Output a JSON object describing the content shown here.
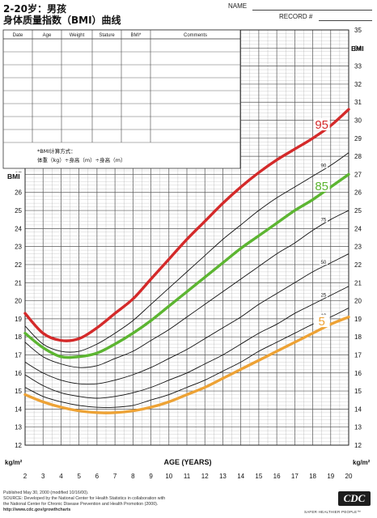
{
  "header": {
    "title": "2-20岁：男孩",
    "subtitle": "身体质量指数（BMI）曲线",
    "name_label": "NAME",
    "record_label": "RECORD #"
  },
  "record_table": {
    "columns": [
      "Date",
      "Age",
      "Weight",
      "Stature",
      "BMI*",
      "Comments"
    ]
  },
  "bmi_note": {
    "line1": "*BMI计算方式：",
    "line2": "体重（kg）÷身高（m）÷身高（m）"
  },
  "footer": {
    "line1": "Published May 30, 2000 (modified 10/16/00).",
    "line2": "SOURCE: Developed by the National Center for Health Statistics in collaboration with",
    "line3": "the National Center for Chronic Disease Prevention and Health Promotion (2000).",
    "url": "http://www.cdc.gov/growthcharts",
    "logo": "CDC",
    "tagline": "SAFER·HEALTHIER·PEOPLE™"
  },
  "chart_data": {
    "type": "line",
    "xlabel": "AGE (YEARS)",
    "ylabel_left": "BMI",
    "ylabel_right": "BMI",
    "unit_label": "kg/m²",
    "xlim": [
      2,
      20
    ],
    "ylim": [
      12,
      35
    ],
    "x_ticks": [
      2,
      3,
      4,
      5,
      6,
      7,
      8,
      9,
      10,
      11,
      12,
      13,
      14,
      15,
      16,
      17,
      18,
      19,
      20
    ],
    "y_ticks_left": [
      12,
      13,
      14,
      15,
      16,
      17,
      18,
      19,
      20,
      21,
      22,
      23,
      24,
      25,
      26,
      27
    ],
    "y_ticks_right": [
      12,
      13,
      14,
      15,
      16,
      17,
      18,
      19,
      20,
      21,
      22,
      23,
      24,
      25,
      26,
      27,
      28,
      29,
      30,
      31,
      32,
      33,
      34,
      35
    ],
    "x": [
      2,
      3,
      4,
      5,
      6,
      7,
      8,
      9,
      10,
      11,
      12,
      13,
      14,
      15,
      16,
      17,
      18,
      19,
      20
    ],
    "series": [
      {
        "name": "95",
        "color": "#d42a2a",
        "bold": true,
        "values": [
          19.3,
          18.2,
          17.8,
          17.9,
          18.5,
          19.3,
          20.1,
          21.2,
          22.3,
          23.4,
          24.4,
          25.4,
          26.3,
          27.1,
          27.8,
          28.4,
          29.0,
          29.7,
          30.6
        ]
      },
      {
        "name": "90",
        "color": "#111111",
        "bold": false,
        "values": [
          18.6,
          17.6,
          17.2,
          17.2,
          17.6,
          18.2,
          18.9,
          19.8,
          20.7,
          21.6,
          22.5,
          23.4,
          24.2,
          25.0,
          25.7,
          26.3,
          26.9,
          27.5,
          28.2
        ]
      },
      {
        "name": "85",
        "color": "#5cb531",
        "bold": true,
        "values": [
          18.2,
          17.4,
          16.9,
          16.9,
          17.1,
          17.6,
          18.2,
          18.9,
          19.7,
          20.5,
          21.3,
          22.1,
          22.9,
          23.6,
          24.3,
          25.0,
          25.6,
          26.3,
          27.0
        ]
      },
      {
        "name": "75",
        "color": "#111111",
        "bold": false,
        "values": [
          17.7,
          16.9,
          16.5,
          16.3,
          16.4,
          16.8,
          17.2,
          17.8,
          18.4,
          19.1,
          19.8,
          20.5,
          21.2,
          21.9,
          22.6,
          23.2,
          23.9,
          24.5,
          25.0
        ]
      },
      {
        "name": "50",
        "color": "#111111",
        "bold": false,
        "values": [
          16.6,
          16.0,
          15.6,
          15.4,
          15.4,
          15.6,
          15.9,
          16.3,
          16.8,
          17.3,
          17.9,
          18.5,
          19.1,
          19.8,
          20.4,
          21.0,
          21.6,
          22.1,
          22.6
        ]
      },
      {
        "name": "25",
        "color": "#111111",
        "bold": false,
        "values": [
          15.9,
          15.3,
          14.9,
          14.7,
          14.6,
          14.7,
          14.9,
          15.2,
          15.6,
          16.0,
          16.5,
          17.0,
          17.6,
          18.2,
          18.7,
          19.3,
          19.8,
          20.3,
          20.8
        ]
      },
      {
        "name": "10",
        "color": "#111111",
        "bold": false,
        "values": [
          15.2,
          14.7,
          14.4,
          14.2,
          14.1,
          14.1,
          14.2,
          14.5,
          14.8,
          15.2,
          15.6,
          16.1,
          16.6,
          17.2,
          17.7,
          18.2,
          18.7,
          19.1,
          19.6
        ]
      },
      {
        "name": "5",
        "color": "#eda235",
        "bold": true,
        "values": [
          14.8,
          14.4,
          14.1,
          13.9,
          13.8,
          13.8,
          13.9,
          14.1,
          14.4,
          14.8,
          15.2,
          15.7,
          16.2,
          16.7,
          17.2,
          17.7,
          18.2,
          18.7,
          19.1
        ]
      }
    ]
  }
}
